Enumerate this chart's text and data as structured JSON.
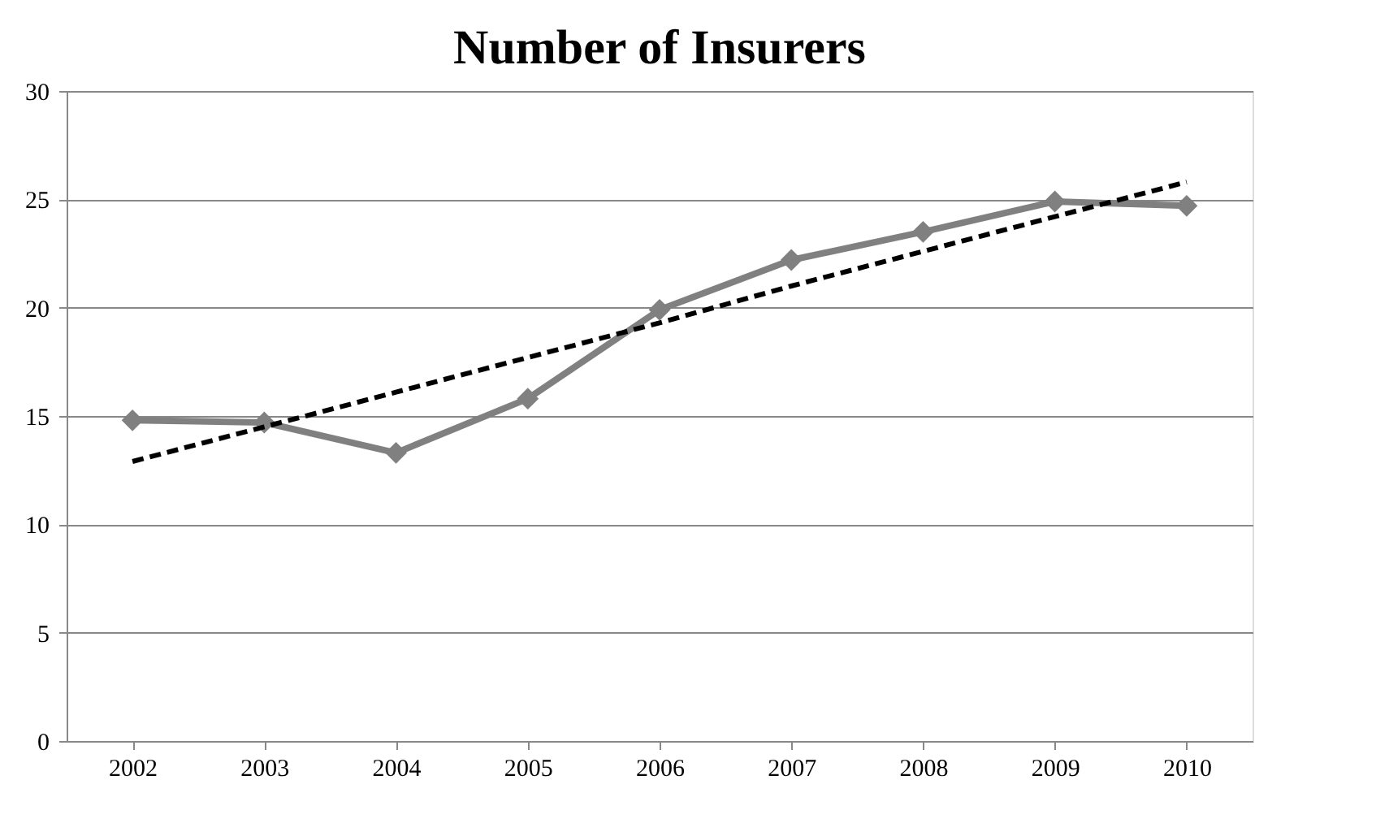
{
  "chart_data": {
    "type": "line",
    "title": "Number of Insurers",
    "categories": [
      "2002",
      "2003",
      "2004",
      "2005",
      "2006",
      "2007",
      "2008",
      "2009",
      "2010"
    ],
    "series": [
      {
        "color": "#808080",
        "marker": "diamond",
        "line_style": "solid",
        "values": [
          14.8,
          14.7,
          13.3,
          15.8,
          19.9,
          22.2,
          23.5,
          24.9,
          24.7
        ]
      },
      {
        "color": "#000000",
        "marker": "none",
        "line_style": "dashed",
        "values": [
          12.9,
          14.5,
          16.1,
          17.7,
          19.3,
          21.0,
          22.6,
          24.2,
          25.8
        ]
      }
    ],
    "ylim": [
      0,
      30
    ],
    "yticks": [
      0,
      5,
      10,
      15,
      20,
      25,
      30
    ],
    "grid": "y"
  }
}
